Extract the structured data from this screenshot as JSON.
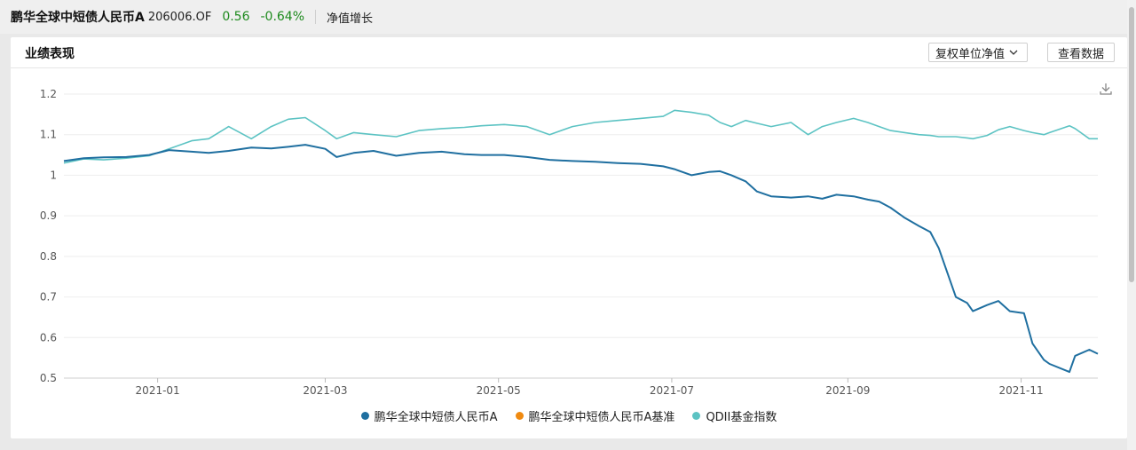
{
  "header": {
    "fund_name": "鹏华全球中短债人民币A",
    "fund_code": "206006.OF",
    "nav": "0.56",
    "change": "-0.64%",
    "nav_growth_label": "净值增长"
  },
  "card": {
    "title": "业绩表现",
    "dropdown_label": "复权单位净值",
    "view_data_label": "查看数据"
  },
  "colors": {
    "fund": "#1f6fa0",
    "benchmark": "#f08a10",
    "index": "#5cc3c3",
    "change_green": "#1d8a1d"
  },
  "chart_data": {
    "type": "line",
    "ylim": [
      0.5,
      1.2
    ],
    "yticks": [
      0.5,
      0.6,
      0.7,
      0.8,
      0.9,
      1,
      1.1,
      1.2
    ],
    "ytick_labels": [
      "0.5",
      "0.6",
      "0.7",
      "0.8",
      "0.9",
      "1",
      "1.1",
      "1.2"
    ],
    "xlim": [
      "2020-11-29",
      "2021-11-28"
    ],
    "xticks": [
      "2021-01-01",
      "2021-03-01",
      "2021-05-01",
      "2021-07-01",
      "2021-09-01",
      "2021-11-01"
    ],
    "xtick_labels": [
      "2021-01",
      "2021-03",
      "2021-05",
      "2021-07",
      "2021-09",
      "2021-11"
    ],
    "legend_position": "bottom",
    "grid": true,
    "series": [
      {
        "name": "鹏华全球中短债人民币A",
        "color": "#1f6fa0",
        "x": [
          "2020-11-29",
          "2020-12-06",
          "2020-12-13",
          "2020-12-21",
          "2020-12-29",
          "2021-01-05",
          "2021-01-13",
          "2021-01-19",
          "2021-01-26",
          "2021-02-03",
          "2021-02-10",
          "2021-02-16",
          "2021-02-22",
          "2021-03-01",
          "2021-03-05",
          "2021-03-11",
          "2021-03-18",
          "2021-03-26",
          "2021-04-03",
          "2021-04-11",
          "2021-04-19",
          "2021-04-25",
          "2021-05-03",
          "2021-05-11",
          "2021-05-19",
          "2021-05-27",
          "2021-06-04",
          "2021-06-12",
          "2021-06-20",
          "2021-06-28",
          "2021-07-02",
          "2021-07-08",
          "2021-07-14",
          "2021-07-18",
          "2021-07-22",
          "2021-07-27",
          "2021-07-31",
          "2021-08-05",
          "2021-08-12",
          "2021-08-18",
          "2021-08-23",
          "2021-08-28",
          "2021-09-03",
          "2021-09-08",
          "2021-09-12",
          "2021-09-16",
          "2021-09-21",
          "2021-09-26",
          "2021-09-30",
          "2021-10-03",
          "2021-10-09",
          "2021-10-13",
          "2021-10-15",
          "2021-10-20",
          "2021-10-24",
          "2021-10-28",
          "2021-11-02",
          "2021-11-05",
          "2021-11-09",
          "2021-11-11",
          "2021-11-18",
          "2021-11-20",
          "2021-11-25",
          "2021-11-28"
        ],
        "values": [
          1.035,
          1.042,
          1.044,
          1.045,
          1.05,
          1.062,
          1.058,
          1.055,
          1.06,
          1.068,
          1.066,
          1.07,
          1.075,
          1.065,
          1.045,
          1.055,
          1.06,
          1.048,
          1.055,
          1.058,
          1.052,
          1.05,
          1.05,
          1.045,
          1.038,
          1.035,
          1.033,
          1.03,
          1.028,
          1.022,
          1.015,
          1.0,
          1.008,
          1.01,
          1.0,
          0.985,
          0.96,
          0.948,
          0.945,
          0.948,
          0.942,
          0.952,
          0.948,
          0.94,
          0.935,
          0.92,
          0.895,
          0.875,
          0.86,
          0.82,
          0.7,
          0.685,
          0.665,
          0.68,
          0.69,
          0.665,
          0.66,
          0.585,
          0.545,
          0.535,
          0.515,
          0.555,
          0.57,
          0.56
        ]
      },
      {
        "name": "鹏华全球中短债人民币A基准",
        "color": "#f08a10",
        "x": [],
        "values": []
      },
      {
        "name": "QDII基金指数",
        "color": "#5cc3c3",
        "x": [
          "2020-11-29",
          "2020-12-06",
          "2020-12-13",
          "2020-12-21",
          "2020-12-29",
          "2021-01-05",
          "2021-01-13",
          "2021-01-19",
          "2021-01-26",
          "2021-02-03",
          "2021-02-10",
          "2021-02-16",
          "2021-02-22",
          "2021-03-01",
          "2021-03-05",
          "2021-03-11",
          "2021-03-18",
          "2021-03-26",
          "2021-04-03",
          "2021-04-11",
          "2021-04-19",
          "2021-04-25",
          "2021-05-03",
          "2021-05-11",
          "2021-05-19",
          "2021-05-27",
          "2021-06-04",
          "2021-06-12",
          "2021-06-20",
          "2021-06-28",
          "2021-07-02",
          "2021-07-08",
          "2021-07-14",
          "2021-07-18",
          "2021-07-22",
          "2021-07-27",
          "2021-07-31",
          "2021-08-05",
          "2021-08-12",
          "2021-08-18",
          "2021-08-23",
          "2021-08-28",
          "2021-09-03",
          "2021-09-08",
          "2021-09-12",
          "2021-09-16",
          "2021-09-21",
          "2021-09-26",
          "2021-09-30",
          "2021-10-03",
          "2021-10-09",
          "2021-10-13",
          "2021-10-15",
          "2021-10-20",
          "2021-10-24",
          "2021-10-28",
          "2021-11-02",
          "2021-11-05",
          "2021-11-09",
          "2021-11-11",
          "2021-11-18",
          "2021-11-20",
          "2021-11-25",
          "2021-11-28"
        ],
        "values": [
          1.03,
          1.04,
          1.038,
          1.042,
          1.048,
          1.065,
          1.085,
          1.09,
          1.12,
          1.09,
          1.12,
          1.138,
          1.142,
          1.11,
          1.09,
          1.105,
          1.1,
          1.095,
          1.11,
          1.115,
          1.118,
          1.122,
          1.125,
          1.12,
          1.1,
          1.12,
          1.13,
          1.135,
          1.14,
          1.145,
          1.16,
          1.155,
          1.148,
          1.13,
          1.12,
          1.135,
          1.128,
          1.12,
          1.13,
          1.1,
          1.12,
          1.13,
          1.14,
          1.13,
          1.12,
          1.11,
          1.105,
          1.1,
          1.098,
          1.095,
          1.095,
          1.092,
          1.09,
          1.098,
          1.112,
          1.12,
          1.11,
          1.105,
          1.1,
          1.105,
          1.122,
          1.115,
          1.09,
          1.09
        ]
      }
    ]
  }
}
